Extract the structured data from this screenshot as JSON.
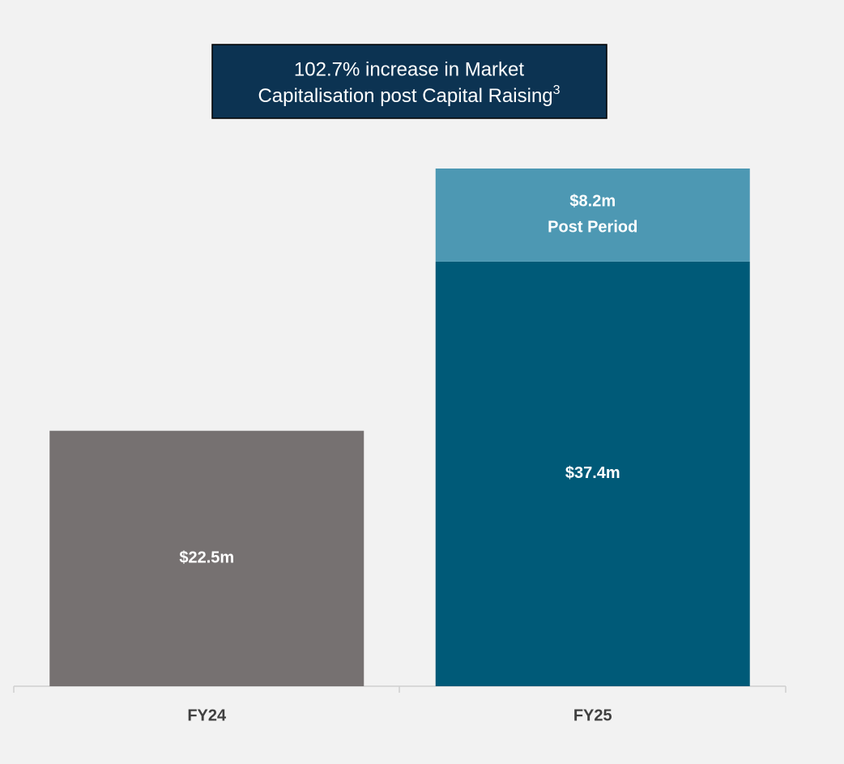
{
  "chart_data": {
    "type": "stacked_bar",
    "annotation": {
      "text_line1": "102.7% increase in Market",
      "text_line2": "Capitalisation post Capital Raising",
      "footnote": "3"
    },
    "categories": [
      "FY24",
      "FY25"
    ],
    "series": [
      {
        "colors": [
          "#767171",
          "#005a78"
        ],
        "values": [
          22.5,
          37.4
        ],
        "value_labels": [
          "$22.5m",
          "$37.4m"
        ]
      },
      {
        "name": "Post Period",
        "color": "#4d98b3",
        "values": [
          null,
          8.2
        ],
        "value_labels": [
          null,
          "$8.2m"
        ]
      }
    ]
  }
}
